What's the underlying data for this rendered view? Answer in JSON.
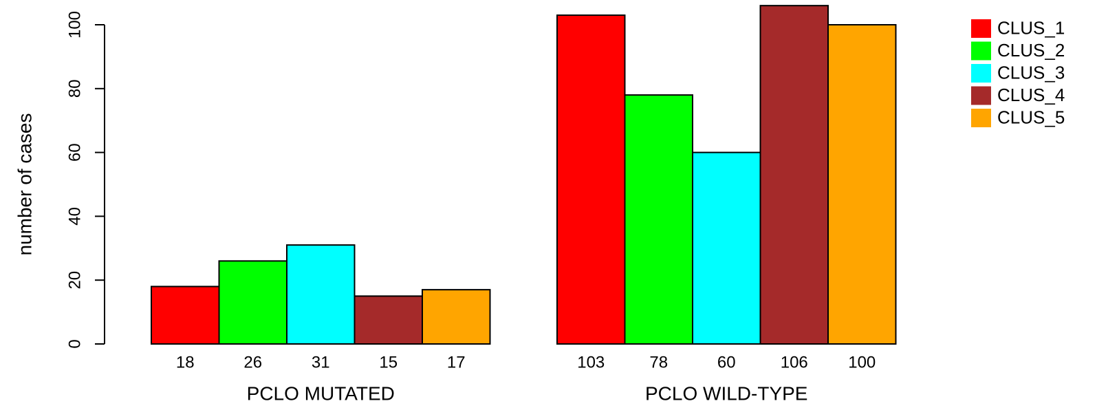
{
  "chart_data": {
    "type": "bar",
    "grouped": true,
    "title": "",
    "ylabel": "number of cases",
    "ylim": [
      0,
      100
    ],
    "yticks": [
      0,
      20,
      40,
      60,
      80,
      100
    ],
    "groups": [
      "PCLO MUTATED",
      "PCLO WILD-TYPE"
    ],
    "series": [
      {
        "name": "CLUS_1",
        "color": "#ff0000",
        "values": [
          18,
          103
        ]
      },
      {
        "name": "CLUS_2",
        "color": "#00ff00",
        "values": [
          26,
          78
        ]
      },
      {
        "name": "CLUS_3",
        "color": "#00ffff",
        "values": [
          31,
          60
        ]
      },
      {
        "name": "CLUS_4",
        "color": "#a52a2a",
        "values": [
          15,
          106
        ]
      },
      {
        "name": "CLUS_5",
        "color": "#ffa500",
        "values": [
          17,
          100
        ]
      }
    ],
    "bar_value_labels": true,
    "legend_position": "top-right",
    "grid": false
  }
}
